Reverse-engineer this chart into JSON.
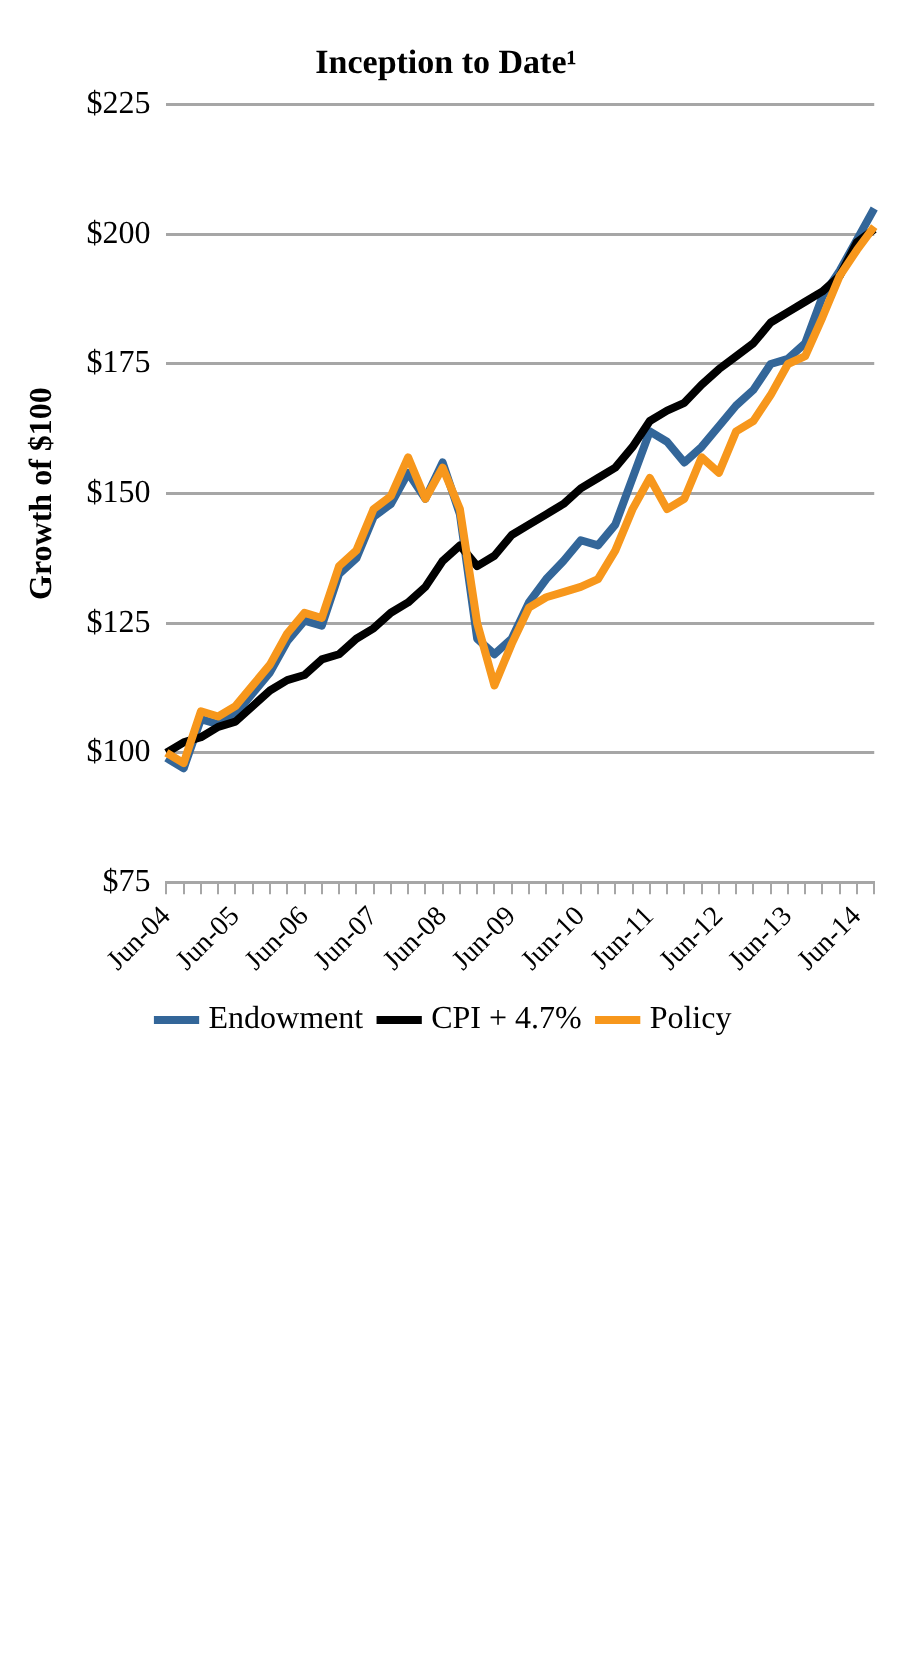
{
  "chart_data": {
    "type": "line",
    "title": "Inception to Date¹",
    "ylabel": "Growth of $100",
    "categories": [
      "Jun-04",
      null,
      null,
      null,
      "Jun-05",
      null,
      null,
      null,
      "Jun-06",
      null,
      null,
      null,
      "Jun-07",
      null,
      null,
      null,
      "Jun-08",
      null,
      null,
      null,
      "Jun-09",
      null,
      null,
      null,
      "Jun-10",
      null,
      null,
      null,
      "Jun-11",
      null,
      null,
      null,
      "Jun-12",
      null,
      null,
      null,
      "Jun-13",
      null,
      null,
      null,
      "Jun-14",
      null
    ],
    "series": [
      {
        "name": "Endowment",
        "color": "#336699",
        "values": [
          99,
          97,
          106.5,
          105.5,
          107.5,
          111.5,
          115.5,
          121.5,
          125.5,
          124.5,
          134.5,
          137.5,
          145.5,
          148,
          154,
          149,
          156,
          146,
          122,
          119,
          122,
          129,
          133.5,
          137,
          141,
          140,
          144,
          153,
          162,
          160,
          156,
          159,
          163,
          167,
          170,
          175,
          176,
          179,
          188,
          193,
          199,
          205
        ]
      },
      {
        "name": "CPI + 4.7%",
        "color": "#000000",
        "values": [
          100,
          102,
          103,
          105,
          106,
          109,
          112,
          114,
          115,
          118,
          119,
          122,
          124,
          127,
          129,
          132,
          137,
          140,
          136,
          138,
          142,
          144,
          146,
          148,
          151,
          153,
          155,
          159,
          164,
          166,
          167.5,
          171,
          174,
          176.5,
          179,
          183,
          185,
          187,
          189,
          192,
          198.5,
          201
        ]
      },
      {
        "name": "Policy",
        "color": "#f7971c",
        "values": [
          100,
          98,
          108,
          107,
          109,
          113,
          117,
          123,
          127,
          126,
          136,
          139,
          147,
          149.5,
          157,
          149,
          155,
          147,
          125,
          113,
          121,
          128,
          130,
          131,
          132,
          133.5,
          139,
          147,
          153,
          147,
          149,
          157,
          154,
          162,
          164,
          169,
          175,
          176.5,
          184,
          192,
          197,
          201.5
        ]
      }
    ],
    "ylim": [
      75,
      225
    ],
    "yticks": [
      {
        "value": 75,
        "label": "$75"
      },
      {
        "value": 100,
        "label": "$100"
      },
      {
        "value": 125,
        "label": "$125"
      },
      {
        "value": 150,
        "label": "$150"
      },
      {
        "value": 175,
        "label": "$175"
      },
      {
        "value": 200,
        "label": "$200"
      },
      {
        "value": 225,
        "label": "$225"
      }
    ],
    "grid": "y",
    "legend": "bottom"
  }
}
